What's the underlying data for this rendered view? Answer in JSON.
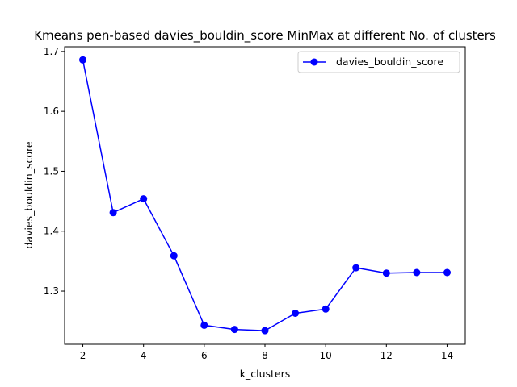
{
  "chart_data": {
    "type": "line",
    "title": "Kmeans pen-based davies_bouldin_score MinMax at different No. of clusters",
    "xlabel": "k_clusters",
    "ylabel": "davies_bouldin_score",
    "xlim": [
      1.4,
      14.6
    ],
    "ylim": [
      1.2112,
      1.7079
    ],
    "xticks": [
      2,
      4,
      6,
      8,
      10,
      12,
      14
    ],
    "yticks": [
      1.3,
      1.4,
      1.5,
      1.6,
      1.7
    ],
    "xtick_labels": [
      "2",
      "4",
      "6",
      "8",
      "10",
      "12",
      "14"
    ],
    "ytick_labels": [
      "1.3",
      "1.4",
      "1.5",
      "1.6",
      "1.7"
    ],
    "grid": false,
    "legend_position": "top-right",
    "series": [
      {
        "name": "davies_bouldin_score",
        "color": "#0000ff",
        "marker": "circle",
        "x": [
          2,
          3,
          4,
          5,
          6,
          7,
          8,
          9,
          10,
          11,
          12,
          13,
          14
        ],
        "y": [
          1.686,
          1.431,
          1.454,
          1.359,
          1.243,
          1.236,
          1.234,
          1.263,
          1.27,
          1.339,
          1.33,
          1.331,
          1.331
        ]
      }
    ]
  }
}
